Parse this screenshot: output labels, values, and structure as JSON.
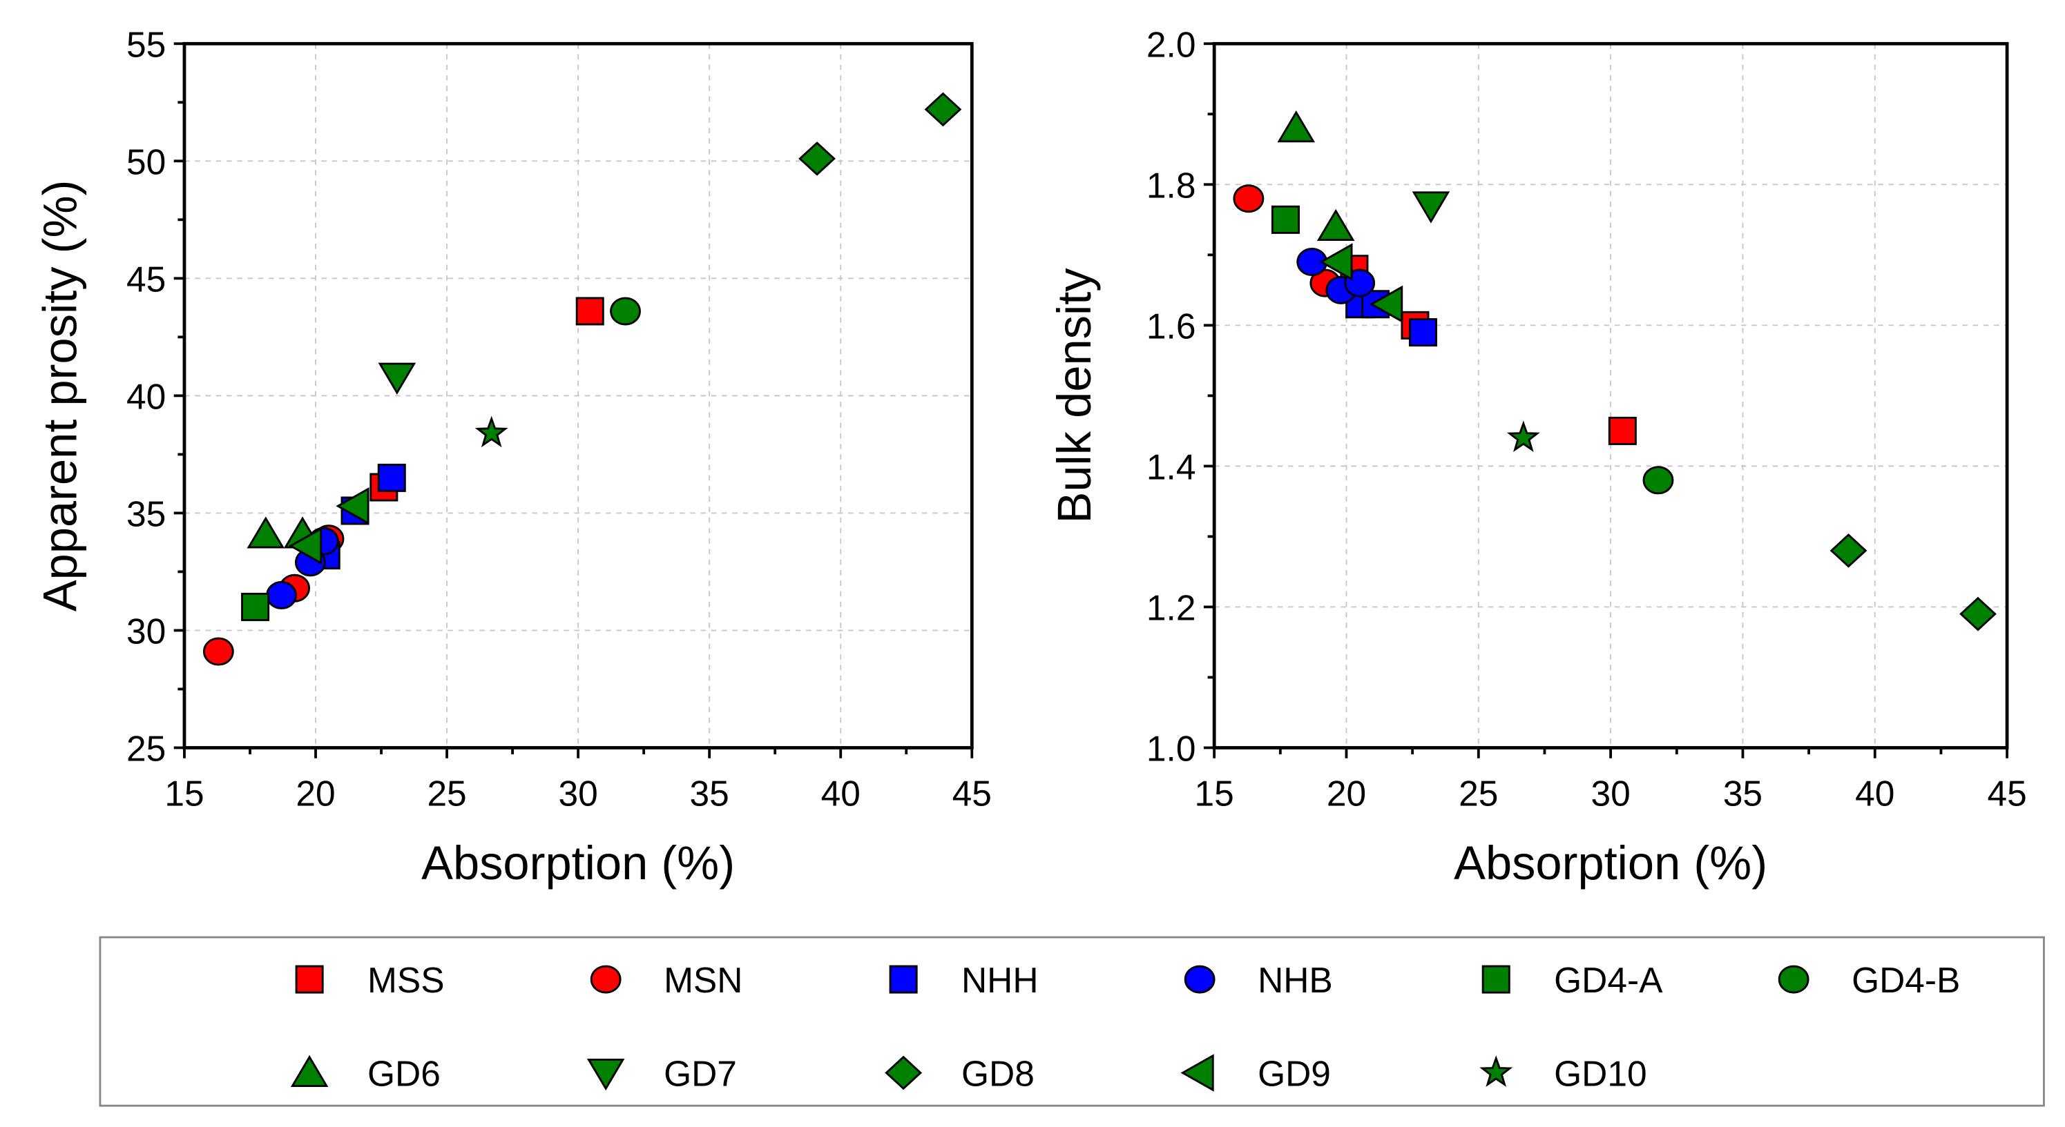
{
  "chart_data": [
    {
      "type": "scatter",
      "title": "",
      "xlabel": "Absorption (%)",
      "ylabel": "Apparent prosity (%)",
      "xlim": [
        15,
        45
      ],
      "ylim": [
        25,
        55
      ],
      "xticks": [
        "15",
        "20",
        "25",
        "30",
        "35",
        "40",
        "45"
      ],
      "yticks": [
        "25",
        "30",
        "35",
        "40",
        "45",
        "50",
        "55"
      ],
      "grid": true,
      "series": [
        {
          "name": "MSS",
          "points": [
            [
              30.45,
              43.6
            ],
            [
              22.6,
              36.1
            ]
          ]
        },
        {
          "name": "MSN",
          "points": [
            [
              16.3,
              29.1
            ],
            [
              19.2,
              31.8
            ],
            [
              20.5,
              33.9
            ]
          ]
        },
        {
          "name": "NHH",
          "points": [
            [
              22.9,
              36.5
            ],
            [
              20.4,
              33.2
            ],
            [
              21.5,
              35.1
            ]
          ]
        },
        {
          "name": "NHB",
          "points": [
            [
              18.7,
              31.5
            ],
            [
              19.8,
              32.9
            ],
            [
              20.3,
              33.8
            ]
          ]
        },
        {
          "name": "GD4-A",
          "points": [
            [
              17.7,
              31.0
            ]
          ]
        },
        {
          "name": "GD4-B",
          "points": [
            [
              31.8,
              43.6
            ]
          ]
        },
        {
          "name": "GD6",
          "points": [
            [
              18.1,
              34.1
            ],
            [
              19.5,
              34.1
            ]
          ]
        },
        {
          "name": "GD7",
          "points": [
            [
              23.1,
              40.8
            ]
          ]
        },
        {
          "name": "GD8",
          "points": [
            [
              39.1,
              50.1
            ],
            [
              43.9,
              52.2
            ]
          ]
        },
        {
          "name": "GD9",
          "points": [
            [
              19.7,
              33.6
            ],
            [
              21.5,
              35.3
            ]
          ]
        },
        {
          "name": "GD10",
          "points": [
            [
              26.7,
              38.4
            ]
          ]
        }
      ]
    },
    {
      "type": "scatter",
      "title": "",
      "xlabel": "Absorption (%)",
      "ylabel": "Bulk density",
      "xlim": [
        15,
        45
      ],
      "ylim": [
        1.0,
        2.0
      ],
      "xticks": [
        "15",
        "20",
        "25",
        "30",
        "35",
        "40",
        "45"
      ],
      "yticks": [
        "1.0",
        "1.2",
        "1.4",
        "1.6",
        "1.8",
        "2.0"
      ],
      "grid": true,
      "series": [
        {
          "name": "MSS",
          "points": [
            [
              30.45,
              1.45
            ],
            [
              22.6,
              1.6
            ],
            [
              20.3,
              1.68
            ]
          ]
        },
        {
          "name": "MSN",
          "points": [
            [
              16.3,
              1.78
            ],
            [
              19.2,
              1.66
            ],
            [
              20.5,
              1.66
            ]
          ]
        },
        {
          "name": "NHH",
          "points": [
            [
              22.9,
              1.59
            ],
            [
              20.5,
              1.63
            ],
            [
              21.1,
              1.63
            ]
          ]
        },
        {
          "name": "NHB",
          "points": [
            [
              18.7,
              1.69
            ],
            [
              19.8,
              1.65
            ],
            [
              20.5,
              1.66
            ]
          ]
        },
        {
          "name": "GD4-A",
          "points": [
            [
              17.7,
              1.75
            ]
          ]
        },
        {
          "name": "GD4-B",
          "points": [
            [
              31.8,
              1.38
            ]
          ]
        },
        {
          "name": "GD6",
          "points": [
            [
              18.1,
              1.88
            ],
            [
              19.6,
              1.74
            ]
          ]
        },
        {
          "name": "GD7",
          "points": [
            [
              23.2,
              1.77
            ]
          ]
        },
        {
          "name": "GD8",
          "points": [
            [
              39.0,
              1.28
            ],
            [
              43.9,
              1.19
            ]
          ]
        },
        {
          "name": "GD9",
          "points": [
            [
              19.7,
              1.69
            ],
            [
              21.6,
              1.63
            ]
          ]
        },
        {
          "name": "GD10",
          "points": [
            [
              26.7,
              1.44
            ]
          ]
        }
      ]
    }
  ],
  "legend": {
    "placement": "bottom",
    "items": [
      {
        "name": "MSS",
        "marker": "square",
        "color": "#ff0000"
      },
      {
        "name": "MSN",
        "marker": "circle",
        "color": "#ff0000"
      },
      {
        "name": "NHH",
        "marker": "square",
        "color": "#0000ff"
      },
      {
        "name": "NHB",
        "marker": "circle",
        "color": "#0000ff"
      },
      {
        "name": "GD4-A",
        "marker": "square",
        "color": "#008000"
      },
      {
        "name": "GD4-B",
        "marker": "circle",
        "color": "#008000"
      },
      {
        "name": "GD6",
        "marker": "triangle-up",
        "color": "#008000"
      },
      {
        "name": "GD7",
        "marker": "triangle-down",
        "color": "#008000"
      },
      {
        "name": "GD8",
        "marker": "diamond",
        "color": "#008000"
      },
      {
        "name": "GD9",
        "marker": "triangle-left",
        "color": "#008000"
      },
      {
        "name": "GD10",
        "marker": "star",
        "color": "#008000"
      }
    ]
  }
}
